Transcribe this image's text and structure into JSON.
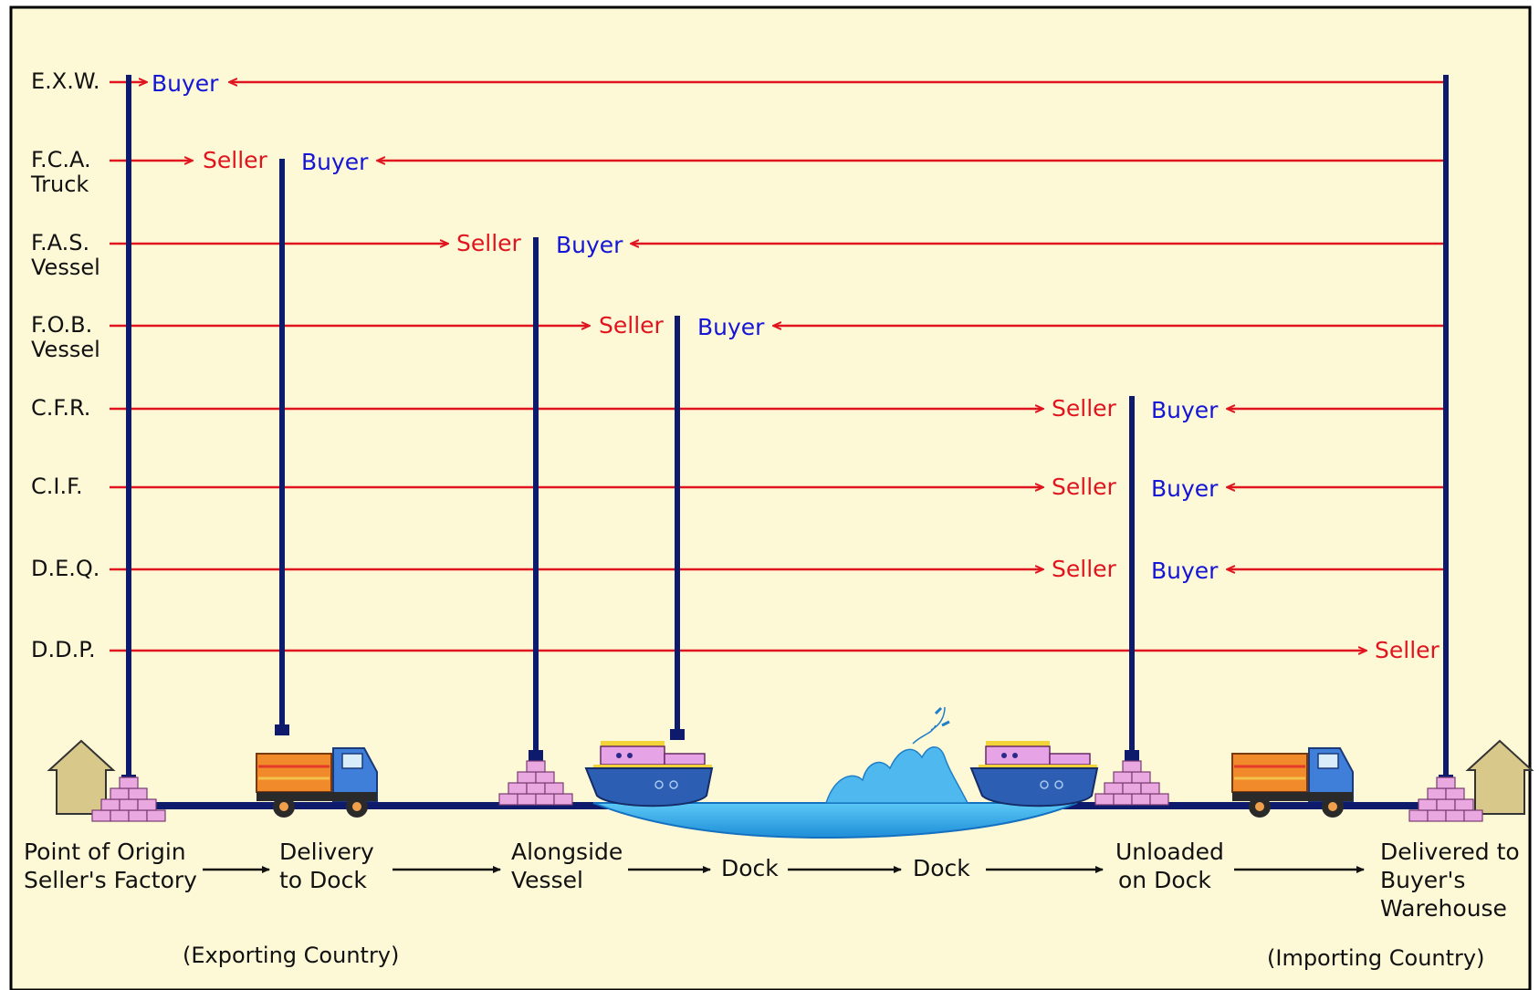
{
  "colors": {
    "background": "#FDF8D6",
    "border": "#000000",
    "responsibility_line": "#E0141E",
    "transfer_post": "#0E1A6B",
    "seller_text": "#E0141E",
    "buyer_text": "#1515D6",
    "house": "#D8C98A",
    "pallet": "#E9A8E0",
    "water": "#1EA6E8",
    "ship_hull": "#2C5FB3",
    "ship_cabin": "#E6A4E6",
    "truck_cab": "#3F7FD9",
    "truck_bed": "#F08A2A"
  },
  "terms": [
    {
      "id": "exw",
      "label_lines": [
        "E.X.W."
      ],
      "seller": "",
      "buyer": "Buyer"
    },
    {
      "id": "fca",
      "label_lines": [
        "F.C.A.",
        "Truck"
      ],
      "seller": "Seller",
      "buyer": "Buyer"
    },
    {
      "id": "fas",
      "label_lines": [
        "F.A.S.",
        "Vessel"
      ],
      "seller": "Seller",
      "buyer": "Buyer"
    },
    {
      "id": "fob",
      "label_lines": [
        "F.O.B.",
        "Vessel"
      ],
      "seller": "Seller",
      "buyer": "Buyer"
    },
    {
      "id": "cfr",
      "label_lines": [
        "C.F.R."
      ],
      "seller": "Seller",
      "buyer": "Buyer"
    },
    {
      "id": "cif",
      "label_lines": [
        "C.I.F."
      ],
      "seller": "Seller",
      "buyer": "Buyer"
    },
    {
      "id": "deq",
      "label_lines": [
        "D.E.Q."
      ],
      "seller": "Seller",
      "buyer": "Buyer"
    },
    {
      "id": "ddp",
      "label_lines": [
        "D.D.P."
      ],
      "seller": "Seller",
      "buyer": ""
    }
  ],
  "stages": [
    {
      "id": "origin",
      "lines": [
        "Point of Origin",
        "Seller's Factory"
      ]
    },
    {
      "id": "delivery-dock",
      "lines": [
        "Delivery",
        "to Dock"
      ]
    },
    {
      "id": "alongside",
      "lines": [
        "Alongside",
        "Vessel"
      ]
    },
    {
      "id": "dock-export",
      "lines": [
        "Dock"
      ]
    },
    {
      "id": "dock-import",
      "lines": [
        "Dock"
      ]
    },
    {
      "id": "unloaded",
      "lines": [
        "Unloaded",
        "on Dock"
      ]
    },
    {
      "id": "delivered",
      "lines": [
        "Delivered to",
        "Buyer's",
        "Warehouse"
      ]
    }
  ],
  "countries": {
    "exporting": "(Exporting Country)",
    "importing": "(Importing Country)"
  },
  "icons": [
    "house-icon",
    "pallet-stack-icon",
    "truck-icon",
    "ship-icon",
    "water-icon",
    "wave-splash-icon"
  ]
}
